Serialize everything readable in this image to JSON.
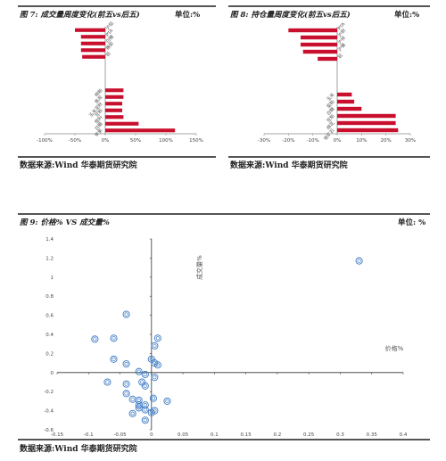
{
  "fig7": {
    "title": "图 7:   成交量周度变化(前五vs后五)",
    "unit": "单位:%",
    "source": "数据来源:Wind 华泰期货研究院"
  },
  "fig8": {
    "title": "图 8:   持仓量周度变化(前五vs后五)",
    "unit": "单位:%",
    "source": "数据来源:Wind 华泰期货研究院"
  },
  "fig9": {
    "title": "图 9:      价格% VS  成交量%",
    "unit": "单位: %",
    "source": "数据来源:Wind 华泰期货研究院"
  },
  "chart_data": [
    {
      "type": "bar",
      "orientation": "horizontal",
      "categories": [
        "沪铅",
        "PTA",
        "白糖",
        "橡胶",
        "铝",
        "",
        "",
        "",
        "",
        "棉粕",
        "焦炭",
        "玉米淀粉",
        "豆粕",
        "塑料",
        "白糖",
        "苹果"
      ],
      "values": [
        -50,
        -40,
        -40,
        -40,
        -38,
        0,
        0,
        0,
        0,
        30,
        30,
        28,
        28,
        30,
        55,
        115
      ],
      "xlim": [
        -100,
        150
      ],
      "xticks": [
        "-100%",
        "-50%",
        "0%",
        "50%",
        "100%",
        "150%"
      ],
      "color": "#c8102e"
    },
    {
      "type": "bar",
      "orientation": "horizontal",
      "categories": [
        "PTA",
        "沪铜",
        "沪锌",
        "沪镍",
        "铝",
        "",
        "",
        "",
        "",
        "玉米",
        "菜粕",
        "白糖",
        "豆粕",
        "棉花",
        "铁矿石"
      ],
      "values": [
        -20,
        -15,
        -15,
        -14,
        -8,
        0,
        0,
        0,
        0,
        6,
        7,
        10,
        24,
        24,
        25
      ],
      "xlim": [
        -30,
        30
      ],
      "xticks": [
        "-30%",
        "-20%",
        "-10%",
        "0%",
        "10%",
        "20%",
        "30%"
      ],
      "color": "#c8102e"
    },
    {
      "type": "scatter",
      "xlabel": "价格%",
      "ylabel": "成交量%",
      "xlim": [
        -0.15,
        0.4
      ],
      "ylim": [
        -0.6,
        1.4
      ],
      "xticks": [
        -0.15,
        -0.1,
        -0.05,
        0,
        0.05,
        0.1,
        0.15,
        0.2,
        0.25,
        0.3,
        0.35,
        0.4
      ],
      "yticks": [
        1.4,
        1.2,
        1,
        0.8,
        0.6,
        0.4,
        0.2,
        0,
        -0.2,
        -0.4,
        -0.6
      ],
      "points": [
        [
          -0.09,
          0.35
        ],
        [
          -0.06,
          0.36
        ],
        [
          -0.04,
          0.61
        ],
        [
          -0.06,
          0.14
        ],
        [
          -0.04,
          0.09
        ],
        [
          -0.07,
          -0.1
        ],
        [
          -0.04,
          -0.12
        ],
        [
          -0.04,
          -0.22
        ],
        [
          -0.03,
          -0.28
        ],
        [
          -0.02,
          -0.29
        ],
        [
          -0.02,
          -0.34
        ],
        [
          -0.01,
          -0.34
        ],
        [
          -0.03,
          -0.43
        ],
        [
          -0.01,
          -0.5
        ],
        [
          -0.02,
          -0.37
        ],
        [
          -0.01,
          -0.39
        ],
        [
          -0.015,
          -0.1
        ],
        [
          -0.01,
          -0.14
        ],
        [
          -0.02,
          0.01
        ],
        [
          0.0,
          0.14
        ],
        [
          0.005,
          0.1
        ],
        [
          0.005,
          0.28
        ],
        [
          0.01,
          0.36
        ],
        [
          0.01,
          0.08
        ],
        [
          0.005,
          -0.05
        ],
        [
          0.003,
          -0.27
        ],
        [
          0.005,
          -0.4
        ],
        [
          0.0,
          -0.42
        ],
        [
          0.025,
          -0.3
        ],
        [
          -0.01,
          -0.02
        ],
        [
          0.33,
          1.17
        ]
      ],
      "color": "#3a78c3"
    }
  ]
}
